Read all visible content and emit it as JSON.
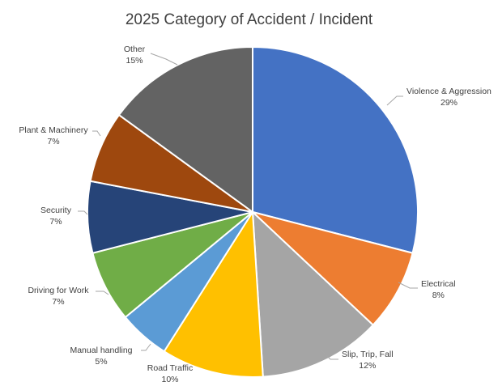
{
  "chart_data": {
    "type": "pie",
    "title": "2025 Category of Accident / Incident",
    "start_angle_deg": 0,
    "direction": "clockwise",
    "slices": [
      {
        "label": "Violence & Aggression",
        "value": 29,
        "display": "29%",
        "color": "#4472C4"
      },
      {
        "label": "Electrical",
        "value": 8,
        "display": "8%",
        "color": "#ED7D31"
      },
      {
        "label": "Slip, Trip, Fall",
        "value": 12,
        "display": "12%",
        "color": "#A5A5A5"
      },
      {
        "label": "Road Traffic",
        "value": 10,
        "display": "10%",
        "color": "#FFC000"
      },
      {
        "label": "Manual handling",
        "value": 5,
        "display": "5%",
        "color": "#5B9BD5"
      },
      {
        "label": "Driving for Work",
        "value": 7,
        "display": "7%",
        "color": "#70AD47"
      },
      {
        "label": "Security",
        "value": 7,
        "display": "7%",
        "color": "#264478"
      },
      {
        "label": "Plant & Machinery",
        "value": 7,
        "display": "7%",
        "color": "#9E480E"
      },
      {
        "label": "Other",
        "value": 15,
        "display": "15%",
        "color": "#636363"
      }
    ]
  }
}
